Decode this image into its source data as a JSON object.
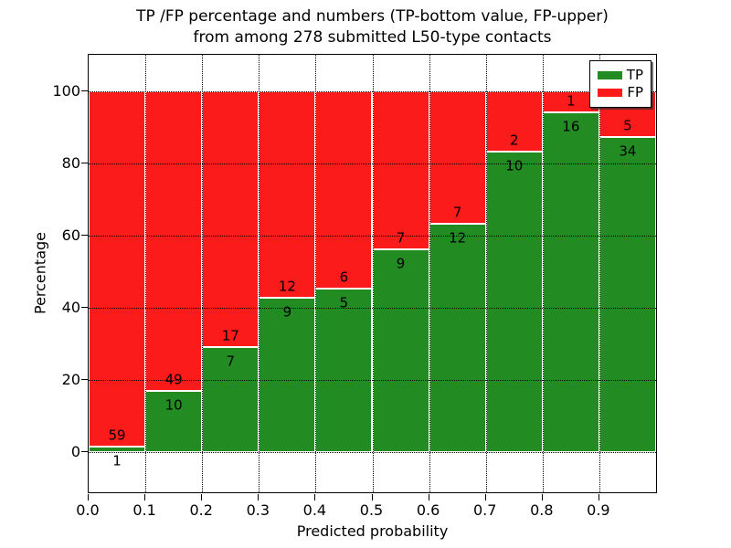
{
  "figure": {
    "title_line1": "TP /FP percentage and numbers (TP-bottom value, FP-upper)",
    "title_line2": "from among 278 submitted L50-type contacts"
  },
  "chart_data": {
    "type": "bar",
    "stacked": true,
    "title": "TP /FP percentage and numbers (TP-bottom value, FP-upper) from among 278 submitted L50-type contacts",
    "xlabel": "Predicted probability",
    "ylabel": "Percentage",
    "categories": [
      "0.0-0.1",
      "0.1-0.2",
      "0.2-0.3",
      "0.3-0.4",
      "0.4-0.5",
      "0.5-0.6",
      "0.6-0.7",
      "0.7-0.8",
      "0.8-0.9",
      "0.9-1.0"
    ],
    "series": [
      {
        "name": "TP",
        "color": "#228b22",
        "counts": [
          1,
          10,
          7,
          9,
          5,
          9,
          12,
          10,
          16,
          34
        ]
      },
      {
        "name": "FP",
        "color": "#fb1b1b",
        "counts": [
          59,
          49,
          17,
          12,
          6,
          7,
          7,
          2,
          1,
          5
        ]
      }
    ],
    "tp_percent": [
      1.67,
      16.95,
      29.17,
      42.86,
      45.45,
      56.25,
      63.16,
      83.33,
      94.12,
      87.18
    ],
    "bar_total_percent": 100,
    "total_contacts": 278,
    "x_tick_labels": [
      "0.0",
      "0.1",
      "0.2",
      "0.3",
      "0.4",
      "0.5",
      "0.6",
      "0.7",
      "0.8",
      "0.9"
    ],
    "y_ticks": [
      0,
      20,
      40,
      60,
      80,
      100
    ],
    "xlim": [
      0.0,
      1.0
    ],
    "ylim": [
      -11,
      110
    ],
    "grid": "dotted",
    "legend": {
      "position": "upper right",
      "entries": [
        {
          "label": "TP",
          "color": "#228b22"
        },
        {
          "label": "FP",
          "color": "#fb1b1b"
        }
      ]
    }
  }
}
